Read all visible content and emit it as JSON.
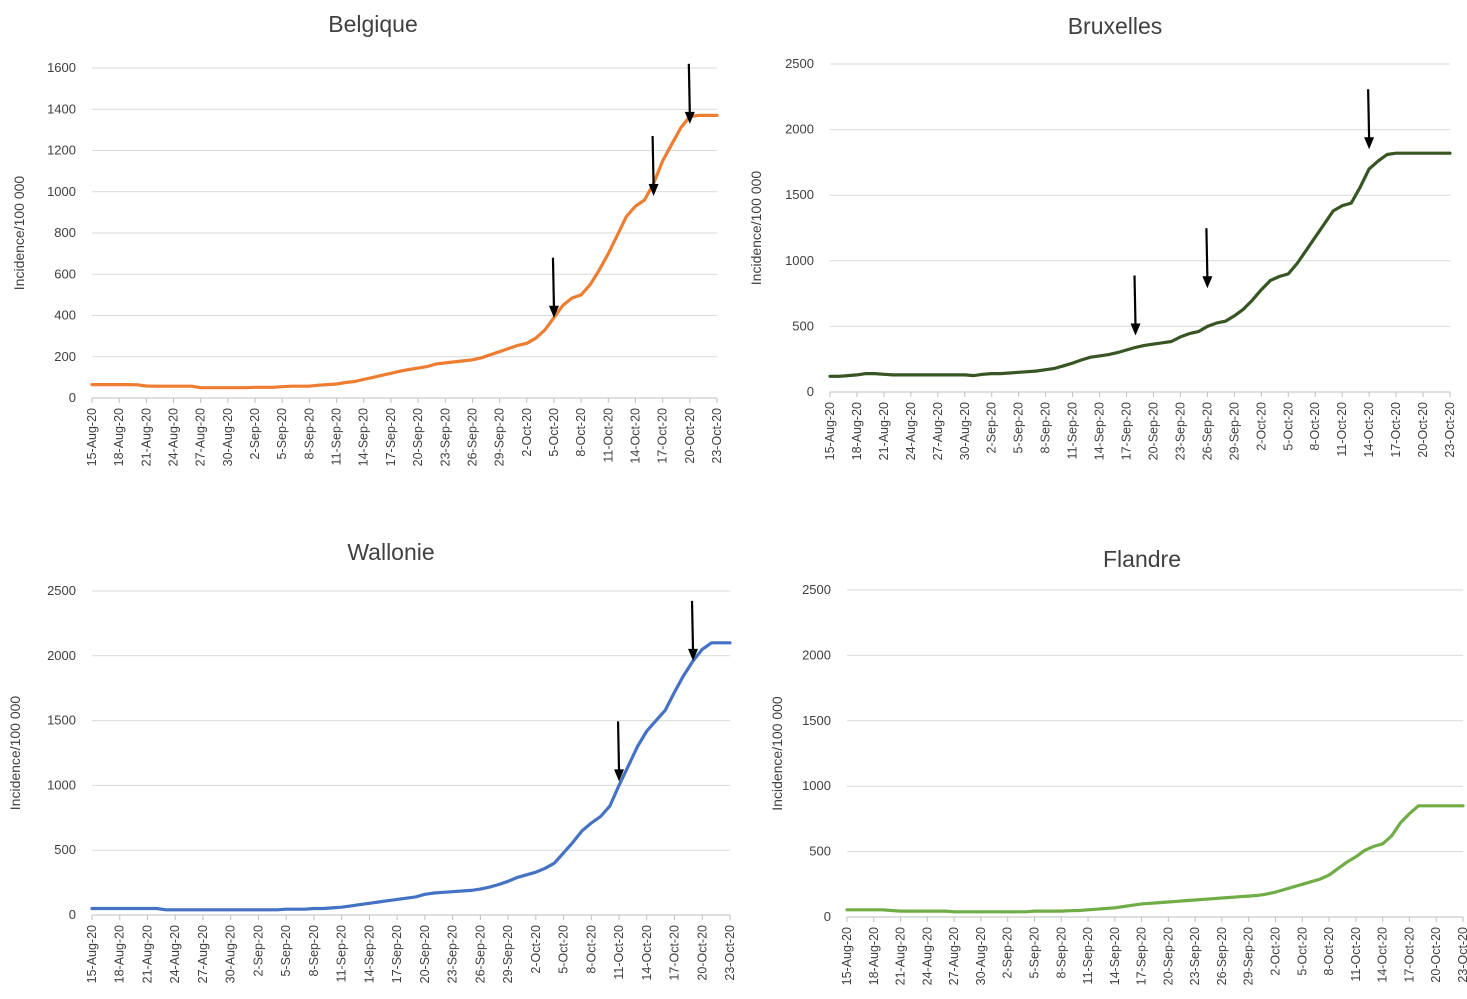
{
  "chart_data": [
    {
      "type": "line",
      "title": "Belgique",
      "ylabel": "Incidence/100 000",
      "xlabel": "",
      "ylim": [
        0,
        1600
      ],
      "yticks": [
        0,
        200,
        400,
        600,
        800,
        1000,
        1200,
        1400,
        1600
      ],
      "grid": true,
      "legend": "none",
      "x_ticks": [
        "15-Aug-20",
        "18-Aug-20",
        "21-Aug-20",
        "24-Aug-20",
        "27-Aug-20",
        "30-Aug-20",
        "2-Sep-20",
        "5-Sep-20",
        "8-Sep-20",
        "11-Sep-20",
        "14-Sep-20",
        "17-Sep-20",
        "20-Sep-20",
        "23-Sep-20",
        "26-Sep-20",
        "29-Sep-20",
        "2-Oct-20",
        "5-Oct-20",
        "8-Oct-20",
        "11-Oct-20",
        "14-Oct-20",
        "17-Oct-20",
        "20-Oct-20",
        "23-Oct-20"
      ],
      "series": [
        {
          "color": "#ed7d31",
          "values": [
            65,
            65,
            65,
            65,
            65,
            64,
            58,
            57,
            57,
            57,
            57,
            57,
            50,
            50,
            50,
            50,
            50,
            50,
            52,
            52,
            52,
            55,
            57,
            57,
            57,
            62,
            65,
            68,
            75,
            80,
            90,
            100,
            110,
            120,
            130,
            138,
            145,
            152,
            165,
            170,
            175,
            180,
            185,
            195,
            210,
            225,
            240,
            255,
            265,
            290,
            330,
            390,
            450,
            485,
            500,
            550,
            620,
            700,
            790,
            880,
            930,
            960,
            1040,
            1150,
            1230,
            1310,
            1365,
            1370,
            1370,
            1370
          ]
        }
      ],
      "arrows": [
        {
          "x_index": 51,
          "y_value": 370
        },
        {
          "x_index": 62,
          "y_value": 960
        },
        {
          "x_index": 66,
          "y_value": 1310
        }
      ]
    },
    {
      "type": "line",
      "title": "Bruxelles",
      "ylabel": "Incidence/100 000",
      "xlabel": "",
      "ylim": [
        0,
        2500
      ],
      "yticks": [
        0,
        500,
        1000,
        1500,
        2000,
        2500
      ],
      "grid": true,
      "legend": "none",
      "x_ticks": [
        "15-Aug-20",
        "18-Aug-20",
        "21-Aug-20",
        "24-Aug-20",
        "27-Aug-20",
        "30-Aug-20",
        "2-Sep-20",
        "5-Sep-20",
        "8-Sep-20",
        "11-Sep-20",
        "14-Sep-20",
        "17-Sep-20",
        "20-Sep-20",
        "23-Sep-20",
        "26-Sep-20",
        "29-Sep-20",
        "2-Oct-20",
        "5-Oct-20",
        "8-Oct-20",
        "11-Oct-20",
        "14-Oct-20",
        "17-Oct-20",
        "20-Oct-20",
        "23-Oct-20"
      ],
      "series": [
        {
          "color": "#375623",
          "values": [
            120,
            120,
            125,
            130,
            140,
            140,
            135,
            130,
            130,
            130,
            130,
            130,
            130,
            130,
            130,
            130,
            125,
            135,
            140,
            140,
            145,
            150,
            155,
            160,
            170,
            180,
            200,
            220,
            245,
            265,
            275,
            285,
            300,
            320,
            340,
            355,
            365,
            375,
            385,
            420,
            445,
            460,
            500,
            525,
            540,
            580,
            630,
            700,
            780,
            850,
            880,
            900,
            980,
            1080,
            1180,
            1280,
            1380,
            1420,
            1440,
            1560,
            1700,
            1760,
            1810,
            1820,
            1820,
            1820,
            1820,
            1820,
            1820,
            1820
          ]
        }
      ],
      "arrows": [
        {
          "x_index": 34,
          "y_value": 400
        },
        {
          "x_index": 42,
          "y_value": 760
        },
        {
          "x_index": 60,
          "y_value": 1820
        }
      ]
    },
    {
      "type": "line",
      "title": "Wallonie",
      "ylabel": "Incidence/100 000",
      "xlabel": "",
      "ylim": [
        0,
        2500
      ],
      "yticks": [
        0,
        500,
        1000,
        1500,
        2000,
        2500
      ],
      "grid": true,
      "legend": "none",
      "x_ticks": [
        "15-Aug-20",
        "18-Aug-20",
        "21-Aug-20",
        "24-Aug-20",
        "27-Aug-20",
        "30-Aug-20",
        "2-Sep-20",
        "5-Sep-20",
        "8-Sep-20",
        "11-Sep-20",
        "14-Sep-20",
        "17-Sep-20",
        "20-Sep-20",
        "23-Sep-20",
        "26-Sep-20",
        "29-Sep-20",
        "2-Oct-20",
        "5-Oct-20",
        "8-Oct-20",
        "11-Oct-20",
        "14-Oct-20",
        "17-Oct-20",
        "20-Oct-20",
        "23-Oct-20"
      ],
      "series": [
        {
          "color": "#4472c4",
          "values": [
            50,
            50,
            50,
            50,
            50,
            50,
            50,
            50,
            40,
            40,
            40,
            40,
            40,
            40,
            40,
            40,
            40,
            40,
            40,
            40,
            40,
            45,
            45,
            45,
            50,
            50,
            55,
            60,
            70,
            80,
            90,
            100,
            110,
            120,
            130,
            140,
            160,
            170,
            175,
            180,
            185,
            190,
            200,
            215,
            235,
            260,
            290,
            310,
            330,
            360,
            400,
            480,
            560,
            650,
            710,
            760,
            840,
            1000,
            1150,
            1300,
            1420,
            1500,
            1580,
            1720,
            1850,
            1960,
            2050,
            2100,
            2100,
            2100
          ]
        }
      ],
      "arrows": [
        {
          "x_index": 57,
          "y_value": 1000
        },
        {
          "x_index": 65,
          "y_value": 1930
        }
      ]
    },
    {
      "type": "line",
      "title": "Flandre",
      "ylabel": "Incidence/100 000",
      "xlabel": "",
      "ylim": [
        0,
        2500
      ],
      "yticks": [
        0,
        500,
        1000,
        1500,
        2000,
        2500
      ],
      "grid": true,
      "legend": "none",
      "x_ticks": [
        "15-Aug-20",
        "18-Aug-20",
        "21-Aug-20",
        "24-Aug-20",
        "27-Aug-20",
        "30-Aug-20",
        "2-Sep-20",
        "5-Sep-20",
        "8-Sep-20",
        "11-Sep-20",
        "14-Sep-20",
        "17-Sep-20",
        "20-Sep-20",
        "23-Sep-20",
        "26-Sep-20",
        "29-Sep-20",
        "2-Oct-20",
        "5-Oct-20",
        "8-Oct-20",
        "11-Oct-20",
        "14-Oct-20",
        "17-Oct-20",
        "20-Oct-20",
        "23-Oct-20"
      ],
      "series": [
        {
          "color": "#70ad47",
          "values": [
            55,
            55,
            55,
            55,
            55,
            50,
            45,
            45,
            45,
            45,
            45,
            45,
            40,
            40,
            40,
            40,
            40,
            40,
            40,
            40,
            40,
            45,
            45,
            45,
            45,
            48,
            50,
            55,
            60,
            65,
            70,
            80,
            90,
            100,
            105,
            110,
            115,
            120,
            125,
            130,
            135,
            140,
            145,
            150,
            155,
            160,
            165,
            175,
            190,
            210,
            230,
            250,
            270,
            290,
            320,
            370,
            420,
            460,
            510,
            540,
            560,
            620,
            720,
            790,
            850,
            850,
            850,
            850,
            850,
            850
          ]
        }
      ],
      "arrows": []
    }
  ]
}
